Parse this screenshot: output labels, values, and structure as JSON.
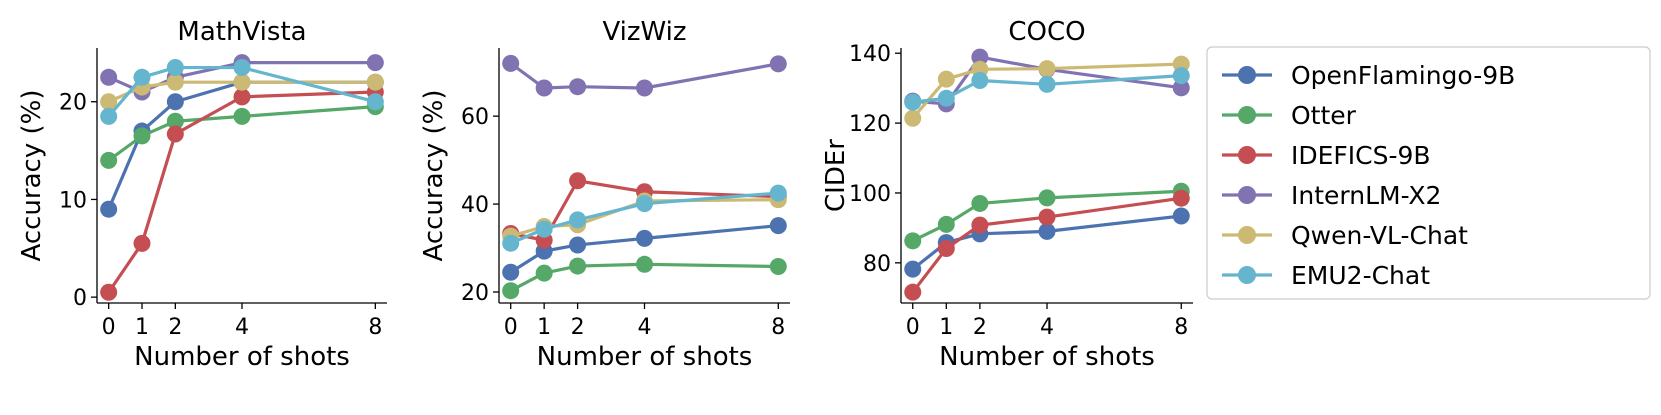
{
  "legend": {
    "placement": "right",
    "entries": [
      {
        "name": "OpenFlamingo-9B",
        "color": "#4c72b0"
      },
      {
        "name": "Otter",
        "color": "#55a868"
      },
      {
        "name": "IDEFICS-9B",
        "color": "#c44e52"
      },
      {
        "name": "InternLM-X2",
        "color": "#8172b2"
      },
      {
        "name": "Qwen-VL-Chat",
        "color": "#ccb974"
      },
      {
        "name": "EMU2-Chat",
        "color": "#64b5cd"
      }
    ]
  },
  "chart_data": [
    {
      "type": "line",
      "title": "MathVista",
      "xlabel": "Number of shots",
      "ylabel": "Accuracy (%)",
      "x": [
        0,
        1,
        2,
        4,
        8
      ],
      "xticks": [
        "0",
        "1",
        "2",
        "4",
        "8"
      ],
      "xlim": [
        -0.35,
        8.35
      ],
      "ylim": [
        -0.6,
        25.5
      ],
      "yticks": [
        "0",
        "10",
        "20"
      ],
      "ytick_values": [
        0,
        10,
        20
      ],
      "grid": false,
      "series": [
        {
          "name": "OpenFlamingo-9B",
          "values": [
            9.0,
            17.0,
            20.0,
            22.0,
            22.0
          ]
        },
        {
          "name": "Otter",
          "values": [
            14.0,
            16.5,
            18.0,
            18.5,
            19.5
          ]
        },
        {
          "name": "IDEFICS-9B",
          "values": [
            0.5,
            5.5,
            16.7,
            20.5,
            21.0
          ]
        },
        {
          "name": "InternLM-X2",
          "values": [
            22.5,
            21.0,
            22.5,
            24.0,
            24.0
          ]
        },
        {
          "name": "Qwen-VL-Chat",
          "values": [
            20.0,
            21.5,
            22.0,
            22.0,
            22.0
          ]
        },
        {
          "name": "EMU2-Chat",
          "values": [
            18.5,
            22.5,
            23.5,
            23.5,
            20.0
          ]
        }
      ]
    },
    {
      "type": "line",
      "title": "VizWiz",
      "xlabel": "Number of shots",
      "ylabel": "Accuracy (%)",
      "x": [
        0,
        1,
        2,
        4,
        8
      ],
      "xticks": [
        "0",
        "1",
        "2",
        "4",
        "8"
      ],
      "xlim": [
        -0.35,
        8.35
      ],
      "ylim": [
        17.5,
        75.5
      ],
      "yticks": [
        "20",
        "40",
        "60"
      ],
      "ytick_values": [
        20,
        40,
        60
      ],
      "grid": false,
      "series": [
        {
          "name": "OpenFlamingo-9B",
          "values": [
            24.5,
            29.3,
            30.7,
            32.2,
            35.1
          ]
        },
        {
          "name": "Otter",
          "values": [
            20.3,
            24.3,
            25.9,
            26.3,
            25.8
          ]
        },
        {
          "name": "IDEFICS-9B",
          "values": [
            33.3,
            31.8,
            45.3,
            42.8,
            41.7
          ]
        },
        {
          "name": "InternLM-X2",
          "values": [
            72.0,
            66.4,
            66.7,
            66.4,
            71.9
          ]
        },
        {
          "name": "Qwen-VL-Chat",
          "values": [
            32.7,
            34.9,
            35.3,
            40.7,
            41.0
          ]
        },
        {
          "name": "EMU2-Chat",
          "values": [
            31.1,
            34.3,
            36.4,
            40.1,
            42.5
          ]
        }
      ]
    },
    {
      "type": "line",
      "title": "COCO",
      "xlabel": "Number of shots",
      "ylabel": "CIDEr",
      "x": [
        0,
        1,
        2,
        4,
        8
      ],
      "xticks": [
        "0",
        "1",
        "2",
        "4",
        "8"
      ],
      "xlim": [
        -0.35,
        8.35
      ],
      "ylim": [
        68.5,
        141.5
      ],
      "yticks": [
        "80",
        "100",
        "120",
        "140"
      ],
      "ytick_values": [
        80,
        100,
        120,
        140
      ],
      "grid": false,
      "series": [
        {
          "name": "OpenFlamingo-9B",
          "values": [
            78.2,
            85.8,
            88.3,
            89.0,
            93.4
          ]
        },
        {
          "name": "Otter",
          "values": [
            86.3,
            91.0,
            97.0,
            98.6,
            100.5
          ]
        },
        {
          "name": "IDEFICS-9B",
          "values": [
            71.6,
            84.1,
            90.8,
            93.1,
            98.5
          ]
        },
        {
          "name": "InternLM-X2",
          "values": [
            126.3,
            125.5,
            138.9,
            135.4,
            130.1
          ]
        },
        {
          "name": "Qwen-VL-Chat",
          "values": [
            121.4,
            132.6,
            135.4,
            135.6,
            136.9
          ]
        },
        {
          "name": "EMU2-Chat",
          "values": [
            126.0,
            127.1,
            132.2,
            131.1,
            133.6
          ]
        }
      ]
    }
  ]
}
